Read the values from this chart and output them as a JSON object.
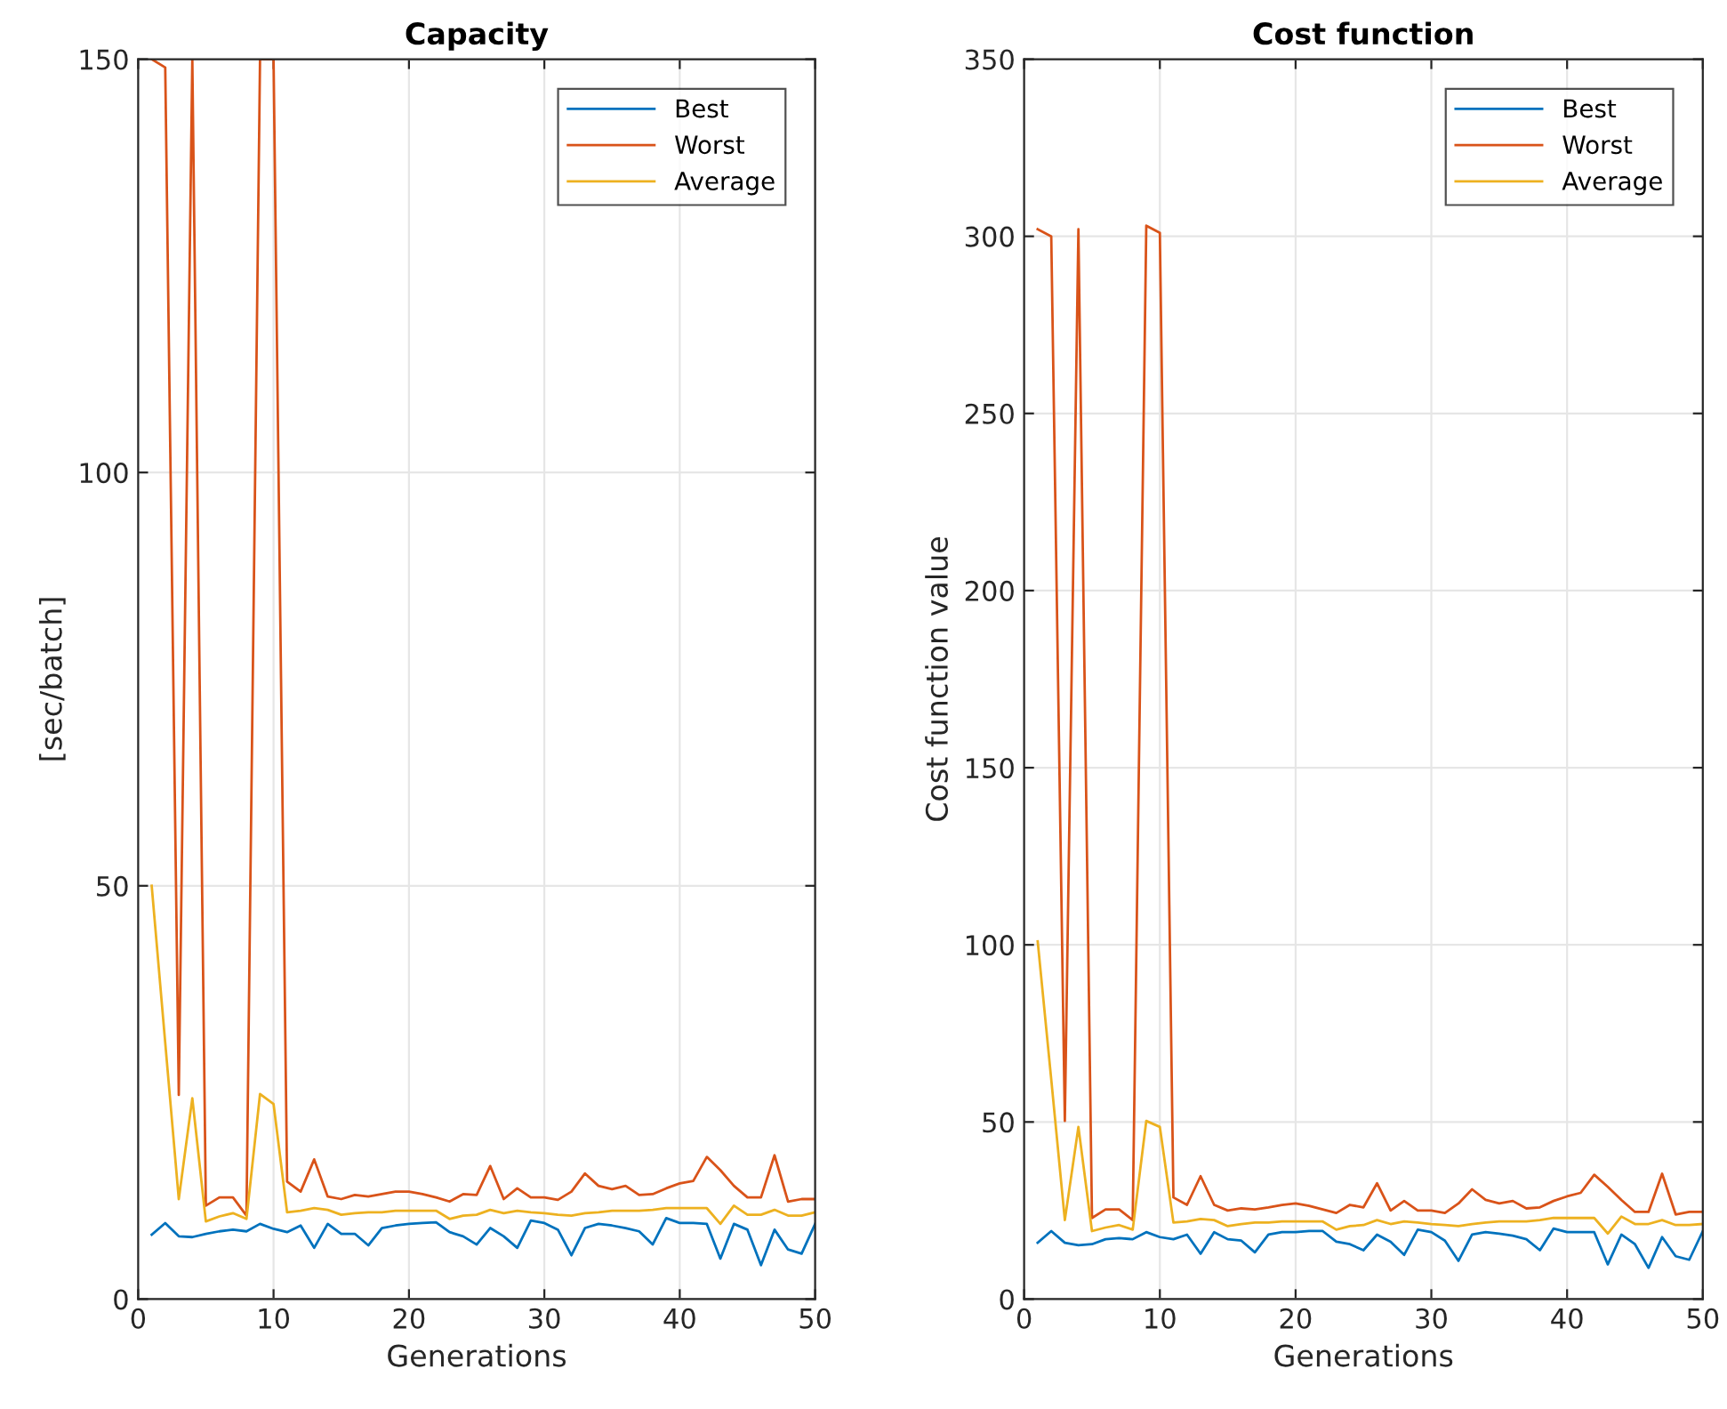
{
  "chart_data": [
    {
      "type": "line",
      "title": "Capacity",
      "xlabel": "Generations",
      "ylabel": "[sec/batch]",
      "xlim": [
        0,
        50
      ],
      "xticks": [
        0,
        10,
        20,
        30,
        40,
        50
      ],
      "ylim": [
        0,
        150
      ],
      "yticks": [
        0,
        50,
        100,
        150
      ],
      "grid": true,
      "legend": "top right",
      "x": [
        1,
        2,
        3,
        4,
        5,
        6,
        7,
        8,
        9,
        10,
        11,
        12,
        13,
        14,
        15,
        16,
        17,
        18,
        19,
        20,
        21,
        22,
        23,
        24,
        25,
        26,
        27,
        28,
        29,
        30,
        31,
        32,
        33,
        34,
        35,
        36,
        37,
        38,
        39,
        40,
        41,
        42,
        43,
        44,
        45,
        46,
        47,
        48,
        49,
        50
      ],
      "series": [
        {
          "name": "Best",
          "color": "#0072bd",
          "values": [
            7.8,
            9.2,
            7.6,
            7.5,
            7.9,
            8.2,
            8.4,
            8.2,
            9.1,
            8.5,
            8.1,
            8.9,
            6.2,
            9.1,
            7.9,
            7.9,
            6.5,
            8.6,
            8.9,
            9.1,
            9.2,
            9.3,
            8.1,
            7.6,
            6.6,
            8.6,
            7.6,
            6.2,
            9.5,
            9.2,
            8.4,
            5.3,
            8.6,
            9.1,
            8.9,
            8.6,
            8.2,
            6.6,
            9.8,
            9.2,
            9.2,
            9.1,
            4.9,
            9.1,
            8.4,
            4.1,
            8.4,
            6.0,
            5.5,
            9.1
          ]
        },
        {
          "name": "Worst",
          "color": "#d95319",
          "values": [
            150,
            149,
            24.7,
            150,
            11.3,
            12.3,
            12.3,
            10.1,
            150,
            150,
            14.2,
            13.0,
            16.9,
            12.4,
            12.1,
            12.6,
            12.4,
            12.7,
            13.0,
            13.0,
            12.7,
            12.3,
            11.8,
            12.7,
            12.6,
            16.1,
            12.1,
            13.4,
            12.3,
            12.3,
            12.0,
            13.0,
            15.2,
            13.7,
            13.3,
            13.7,
            12.6,
            12.7,
            13.4,
            14.0,
            14.3,
            17.2,
            15.6,
            13.7,
            12.3,
            12.3,
            17.4,
            11.8,
            12.1,
            12.1
          ]
        },
        {
          "name": "Average",
          "color": "#edb120",
          "values": [
            50,
            31,
            12.1,
            24.3,
            9.4,
            10.0,
            10.4,
            9.7,
            24.8,
            23.6,
            10.5,
            10.7,
            11.0,
            10.8,
            10.2,
            10.4,
            10.5,
            10.5,
            10.7,
            10.7,
            10.7,
            10.7,
            9.7,
            10.1,
            10.2,
            10.8,
            10.4,
            10.7,
            10.5,
            10.4,
            10.2,
            10.1,
            10.4,
            10.5,
            10.7,
            10.7,
            10.7,
            10.8,
            11.0,
            11.0,
            11.0,
            11.0,
            9.1,
            11.3,
            10.2,
            10.2,
            10.8,
            10.1,
            10.1,
            10.5
          ]
        }
      ]
    },
    {
      "type": "line",
      "title": "Cost function",
      "xlabel": "Generations",
      "ylabel": "Cost function value",
      "xlim": [
        0,
        50
      ],
      "xticks": [
        0,
        10,
        20,
        30,
        40,
        50
      ],
      "ylim": [
        0,
        350
      ],
      "yticks": [
        0,
        50,
        100,
        150,
        200,
        250,
        300,
        350
      ],
      "grid": true,
      "legend": "top right",
      "x": [
        1,
        2,
        3,
        4,
        5,
        6,
        7,
        8,
        9,
        10,
        11,
        12,
        13,
        14,
        15,
        16,
        17,
        18,
        19,
        20,
        21,
        22,
        23,
        24,
        25,
        26,
        27,
        28,
        29,
        30,
        31,
        32,
        33,
        34,
        35,
        36,
        37,
        38,
        39,
        40,
        41,
        42,
        43,
        44,
        45,
        46,
        47,
        48,
        49,
        50
      ],
      "series": [
        {
          "name": "Best",
          "color": "#0072bd",
          "values": [
            15.9,
            19.2,
            15.9,
            15.2,
            15.5,
            16.9,
            17.2,
            16.9,
            18.9,
            17.5,
            16.9,
            18.2,
            12.8,
            18.9,
            16.9,
            16.5,
            13.2,
            18.2,
            18.9,
            18.9,
            19.2,
            19.2,
            16.2,
            15.5,
            13.8,
            18.2,
            16.2,
            12.5,
            19.6,
            18.9,
            16.5,
            10.8,
            18.2,
            18.9,
            18.5,
            17.9,
            16.9,
            13.8,
            19.9,
            18.9,
            18.9,
            18.9,
            9.8,
            18.2,
            15.5,
            8.8,
            17.5,
            12.1,
            11.1,
            19.2
          ]
        },
        {
          "name": "Worst",
          "color": "#d95319",
          "values": [
            302,
            300,
            50.3,
            302,
            22.9,
            25.3,
            25.3,
            22.3,
            303,
            301,
            28.7,
            26.6,
            34.7,
            26.6,
            25.0,
            25.6,
            25.3,
            25.9,
            26.6,
            27.0,
            26.3,
            25.3,
            24.3,
            26.6,
            25.9,
            32.7,
            25.0,
            27.7,
            25.0,
            25.0,
            24.3,
            27.0,
            31.0,
            28.0,
            27.0,
            27.7,
            25.6,
            25.9,
            27.7,
            29.0,
            30.0,
            35.1,
            31.7,
            28.0,
            24.6,
            24.6,
            35.4,
            23.9,
            24.6,
            24.6
          ]
        },
        {
          "name": "Average",
          "color": "#edb120",
          "values": [
            101,
            62,
            22.3,
            48.6,
            19.2,
            20.2,
            20.9,
            19.6,
            50.3,
            48.6,
            21.6,
            21.9,
            22.6,
            22.3,
            20.6,
            21.2,
            21.6,
            21.6,
            21.9,
            21.9,
            21.9,
            21.9,
            19.6,
            20.6,
            20.9,
            22.3,
            21.2,
            21.9,
            21.6,
            21.2,
            20.9,
            20.6,
            21.2,
            21.6,
            21.9,
            21.9,
            21.9,
            22.3,
            22.9,
            22.9,
            22.9,
            22.9,
            18.5,
            23.3,
            21.2,
            21.2,
            22.3,
            20.9,
            20.9,
            21.2
          ]
        }
      ]
    }
  ]
}
